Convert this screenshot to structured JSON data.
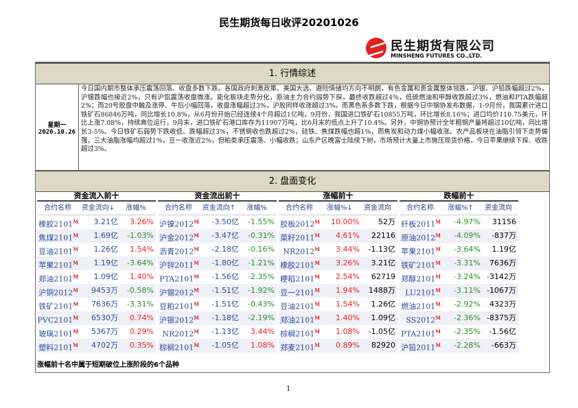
{
  "title": "民生期货每日收评20201026",
  "logo": {
    "cn": "民生期货有限公司",
    "en": "MINSHENG FUTURES CO.,LTD."
  },
  "section1": {
    "title": "1.  行情综述",
    "weekday": "星期一",
    "date": "2020.10.26",
    "text": "今日国内期市整体承压震荡回落、收盘多数下跌。各国政府刺激政策、美国大选、避险情绪均方向不明朗，有色金属和贵金属整体领跌，沪银、沪铅跌幅超过2%，沪锡跌幅也接近2%，只有沪铝震荡收盘微涨。能化板块走势分化，原油主力合约弱势下探，最终收跌超过4%，低硫燃油和甲醇收跌超过3%，燃油和PTA跌幅超2%；而20号胶盘中触及涨停、午后小幅回落，收盘涨幅超过3%，沪胶同样收涨超过3%。而黑色系多数下跌，根据今日中钢协发布数据，1-9月份，我国累计进口铁矿石86846万吨，同比增长10.8%，从6月份开始已经连续4个月超过1亿吨，9月份，我国进口铁矿石10855万吨，环比增长8.16%；进口均价110.75美元，环比上涨7.08%，持续高位运行，9月末，进口铁矿石港口库存为11907万吨，比6月末的低点上升了10.4%。另外，中钢协预计全年粗钢产量将超过10亿吨，同比增长3-5%。今日铁矿石弱势下跌收低、跌幅超过3%，不锈钢收也跌超过2%，硅铁、焦煤跌幅也超1%，而焦炭和动力煤小幅收涨。农产品板块在油脂引领下走势偏强，三大油脂涨幅均超过1%，豆一收涨近2%，但粕类承压震荡、小幅收跌；山东产区晚富士陆续下树，市场预计大量上市施压现货价格，今日苹果继续下探、收跌超过3%。"
  },
  "section2": {
    "title": "2.  盘面变化",
    "footer": "涨幅前十名中属于短期破位上涨阶段的6个品种"
  },
  "marker": "M",
  "colors": {
    "up": "#f02020",
    "down": "#2a9020",
    "header_bg": "#ddd9c4"
  },
  "groups": [
    {
      "title": "资金流入前十",
      "headers": [
        "合约名称",
        "资金流向↓",
        "涨幅%"
      ],
      "rows": [
        [
          "橡胶2101",
          "3.21亿",
          "3.26%"
        ],
        [
          "焦煤2101",
          "1.69亿",
          "-1.03%"
        ],
        [
          "豆油2101",
          "1.26亿",
          "1.54%"
        ],
        [
          "苹果2101",
          "1.19亿",
          "-3.64%"
        ],
        [
          "郑油2101",
          "1.09亿",
          "1.40%"
        ],
        [
          "沪铜2012",
          "9453万",
          "-0.58%"
        ],
        [
          "铁矿2101",
          "7636万",
          "-3.31%"
        ],
        [
          "PVC2101",
          "6530万",
          "0.74%"
        ],
        [
          "玻璃2101",
          "5367万",
          "0.29%"
        ],
        [
          "塑料2101",
          "4702万",
          "0.35%"
        ]
      ]
    },
    {
      "title": "资金流出前十",
      "headers": [
        "合约名称",
        "资金流向↑",
        "涨幅%"
      ],
      "rows": [
        [
          "沪镍2012",
          "-3.50亿",
          "-1.55%"
        ],
        [
          "沪金2012",
          "-3.47亿",
          "-0.31%"
        ],
        [
          "沥青2012",
          "-2.18亿",
          "-0.16%"
        ],
        [
          "沪锌2011",
          "-1.80亿",
          "-1.21%"
        ],
        [
          "PTA2101",
          "-1.56亿",
          "-2.35%"
        ],
        [
          "沪锡2012",
          "-1.51亿",
          "-1.92%"
        ],
        [
          "豆粕2101",
          "-1.51亿",
          "-0.43%"
        ],
        [
          "沪银2012",
          "-1.18亿",
          "-2.19%"
        ],
        [
          "NR2012",
          "-1.13亿",
          "3.44%"
        ],
        [
          "棕榈2101",
          "-1.05亿",
          "1.08%"
        ]
      ]
    },
    {
      "title": "涨幅前十",
      "headers": [
        "合约名称",
        "涨幅%↓",
        "资金流向"
      ],
      "rows": [
        [
          "胶板2012",
          "10.00%",
          "52万"
        ],
        [
          "菜籽2011",
          "4.61%",
          "22116"
        ],
        [
          "NR2012",
          "3.44%",
          "-1.13亿"
        ],
        [
          "橡胶2101",
          "3.26%",
          "3.21亿"
        ],
        [
          "粳稻2101",
          "2.54%",
          "62719"
        ],
        [
          "豆一2101",
          "1.94%",
          "1488万"
        ],
        [
          "豆油2101",
          "1.54%",
          "1.26亿"
        ],
        [
          "郑油2101",
          "1.40%",
          "1.09亿"
        ],
        [
          "棕榈2101",
          "1.08%",
          "-1.05亿"
        ],
        [
          "郑麦2101",
          "0.89%",
          "82920"
        ]
      ]
    },
    {
      "title": "跌幅前十",
      "headers": [
        "合约名称",
        "涨幅%↑",
        "资金流向"
      ],
      "rows": [
        [
          "纤板2011",
          "-4.97%",
          "31156"
        ],
        [
          "原油2012",
          "-4.09%",
          "-837万"
        ],
        [
          "苹果2101",
          "-3.64%",
          "1.19亿"
        ],
        [
          "铁矿2101",
          "-3.31%",
          "7636万"
        ],
        [
          "郑醇2101",
          "-3.24%",
          "-3142万"
        ],
        [
          "LU2101",
          "-3.11%",
          "-1067万"
        ],
        [
          "燃油2101",
          "-2.92%",
          "4323万"
        ],
        [
          "SS2012",
          "-2.36%",
          "-8375万"
        ],
        [
          "PTA2101",
          "-2.35%",
          "-1.56亿"
        ],
        [
          "沪铅2011",
          "-2.28%",
          "-663万"
        ]
      ]
    }
  ],
  "page_number": "1"
}
